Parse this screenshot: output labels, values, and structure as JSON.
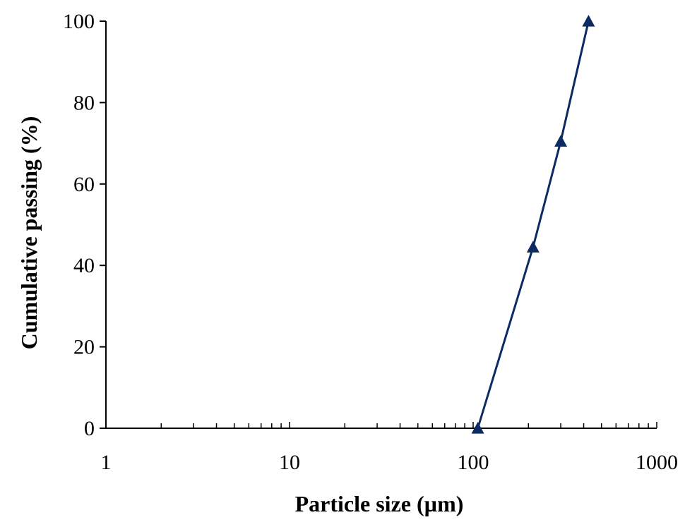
{
  "chart_data": {
    "type": "line",
    "title": "",
    "xlabel": "Particle size (µm)",
    "ylabel": "Cumulative passing (%)",
    "x_scale": "log",
    "xlim": [
      1,
      1000
    ],
    "ylim": [
      0,
      100
    ],
    "x_ticks": [
      1,
      10,
      100,
      1000
    ],
    "x_tick_labels": [
      "1",
      "10",
      "100",
      "1000"
    ],
    "y_ticks": [
      0,
      20,
      40,
      60,
      80,
      100
    ],
    "y_tick_labels": [
      "0",
      "20",
      "40",
      "60",
      "80",
      "100"
    ],
    "grid": false,
    "legend": "none",
    "series": [
      {
        "marker": "triangle",
        "color": "#0d2a63",
        "x": [
          106,
          212,
          300,
          425
        ],
        "y": [
          0,
          44.5,
          70.5,
          100
        ]
      }
    ]
  }
}
